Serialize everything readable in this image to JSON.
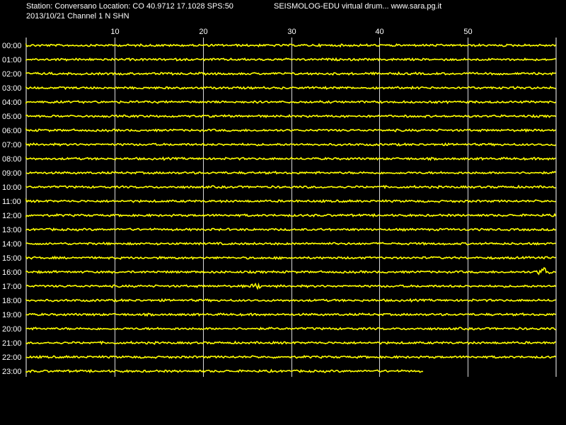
{
  "header": {
    "station_line": "Station: Conversano Location: CO 40.9712 17.1028 SPS:50",
    "title_line": "SEISMOLOG-EDU virtual drum... www.sara.pg.it",
    "date_line": "2013/10/21  Channel 1 N SHN"
  },
  "colors": {
    "background": "#000000",
    "trace": "#ffff00",
    "grid": "#ffffff",
    "text": "#ffffff"
  },
  "chart_data": {
    "type": "line",
    "title": "",
    "xlabel": "",
    "ylabel": "",
    "x_ticks": [
      "10",
      "20",
      "30",
      "40",
      "50"
    ],
    "x_tick_values": [
      10,
      20,
      30,
      40,
      50
    ],
    "xlim": [
      0,
      60
    ],
    "grid": true,
    "rows": [
      {
        "label": "00:00",
        "end_minute": 60,
        "events": []
      },
      {
        "label": "01:00",
        "end_minute": 60,
        "events": []
      },
      {
        "label": "02:00",
        "end_minute": 60,
        "events": []
      },
      {
        "label": "03:00",
        "end_minute": 60,
        "events": []
      },
      {
        "label": "04:00",
        "end_minute": 60,
        "events": []
      },
      {
        "label": "05:00",
        "end_minute": 60,
        "events": []
      },
      {
        "label": "06:00",
        "end_minute": 60,
        "events": []
      },
      {
        "label": "07:00",
        "end_minute": 60,
        "events": []
      },
      {
        "label": "08:00",
        "end_minute": 60,
        "events": []
      },
      {
        "label": "09:00",
        "end_minute": 60,
        "events": []
      },
      {
        "label": "10:00",
        "end_minute": 60,
        "events": []
      },
      {
        "label": "11:00",
        "end_minute": 60,
        "events": []
      },
      {
        "label": "12:00",
        "end_minute": 60,
        "events": []
      },
      {
        "label": "13:00",
        "end_minute": 60,
        "events": []
      },
      {
        "label": "14:00",
        "end_minute": 60,
        "events": []
      },
      {
        "label": "15:00",
        "end_minute": 60,
        "events": []
      },
      {
        "label": "16:00",
        "end_minute": 60,
        "events": [
          {
            "minute": 58.6,
            "amplitude": 1.0
          }
        ]
      },
      {
        "label": "17:00",
        "end_minute": 60,
        "events": [
          {
            "minute": 26.1,
            "amplitude": 0.5
          }
        ]
      },
      {
        "label": "18:00",
        "end_minute": 60,
        "events": []
      },
      {
        "label": "19:00",
        "end_minute": 60,
        "events": []
      },
      {
        "label": "20:00",
        "end_minute": 60,
        "events": []
      },
      {
        "label": "21:00",
        "end_minute": 60,
        "events": []
      },
      {
        "label": "22:00",
        "end_minute": 60,
        "events": []
      },
      {
        "label": "23:00",
        "end_minute": 45.0,
        "events": []
      }
    ]
  }
}
